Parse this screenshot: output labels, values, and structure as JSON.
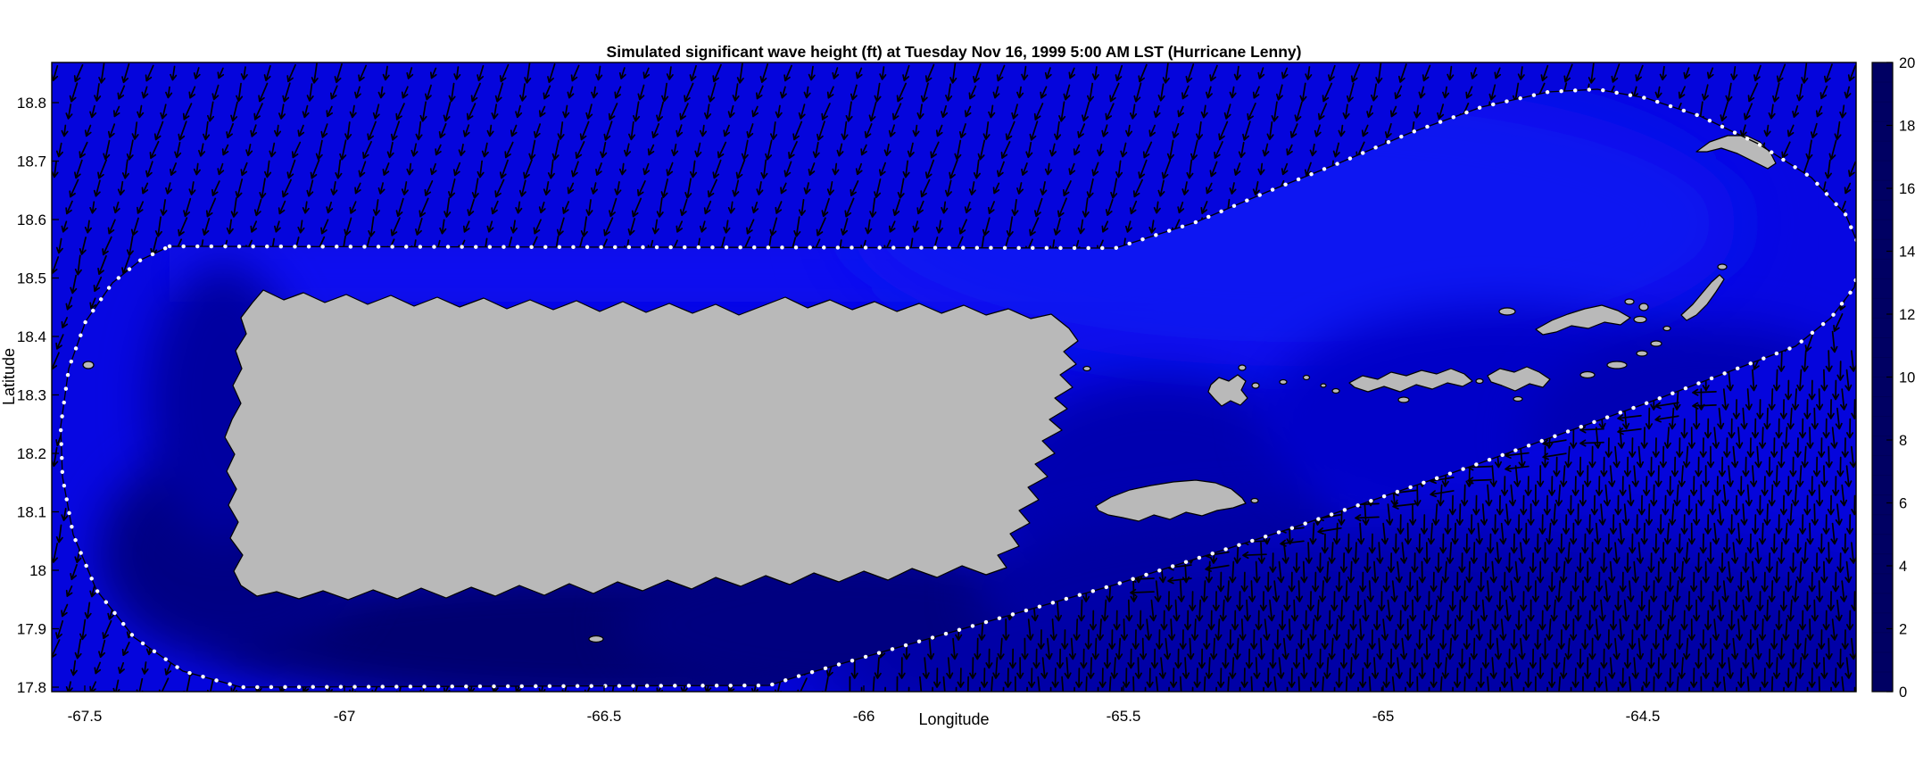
{
  "title": "Simulated significant wave height (ft) at Tuesday Nov 16, 1999  5:00 AM LST (Hurricane Lenny)",
  "axes": {
    "xlabel": "Longitude",
    "ylabel": "Latitude",
    "x_ticks": [
      "-67.5",
      "-67",
      "-66.5",
      "-66",
      "-65.5",
      "-65",
      "-64.5"
    ],
    "y_ticks": [
      "18.8",
      "18.7",
      "18.6",
      "18.5",
      "18.4",
      "18.3",
      "18.2",
      "18.1",
      "18",
      "17.9",
      "17.8"
    ]
  },
  "colorbar": {
    "min": 0,
    "max": 20,
    "ticks": [
      "0",
      "2",
      "4",
      "6",
      "8",
      "10",
      "12",
      "14",
      "16",
      "18",
      "20"
    ],
    "stops": [
      {
        "v": 0,
        "c": "#000063"
      },
      {
        "v": 1.5,
        "c": "#00007d"
      },
      {
        "v": 2.5,
        "c": "#0000a3"
      },
      {
        "v": 3.5,
        "c": "#0000d6"
      },
      {
        "v": 4.5,
        "c": "#0000fa"
      },
      {
        "v": 5.5,
        "c": "#0031ff"
      },
      {
        "v": 6.5,
        "c": "#0069ff"
      },
      {
        "v": 7.5,
        "c": "#00a4ff"
      },
      {
        "v": 8.5,
        "c": "#00e4f8"
      },
      {
        "v": 9.3,
        "c": "#2affc7"
      },
      {
        "v": 10,
        "c": "#7cfa81"
      },
      {
        "v": 10.8,
        "c": "#c2ff3c"
      },
      {
        "v": 11.5,
        "c": "#f2f406"
      },
      {
        "v": 12,
        "c": "#ffc400"
      },
      {
        "v": 13,
        "c": "#ff7e00"
      },
      {
        "v": 14,
        "c": "#ff2a00"
      },
      {
        "v": 15,
        "c": "#ff0040"
      },
      {
        "v": 16,
        "c": "#ff0095"
      },
      {
        "v": 17,
        "c": "#f900dc"
      },
      {
        "v": 18,
        "c": "#d900f2"
      },
      {
        "v": 19,
        "c": "#9c00c2"
      },
      {
        "v": 20,
        "c": "#6b0070"
      }
    ]
  },
  "colors": {
    "background": "#ffffff",
    "ocean_outside_domain": "#0505dc",
    "ocean_inside_domain": "#0707e2",
    "land_gray": "#b9b9b9",
    "coast_outline": "#000000",
    "domain_boundary_dots": "#ffffff",
    "vector_arrows": "#000000",
    "axes_frame": "#000000"
  },
  "chart_data": {
    "type": "heatmap",
    "title": "Simulated significant wave height (ft) at Tuesday Nov 16, 1999  5:00 AM LST (Hurricane Lenny)",
    "xlabel": "Longitude",
    "ylabel": "Latitude",
    "x_range": [
      -67.56,
      -64.09
    ],
    "x_ticks": [
      -67.5,
      -67,
      -66.5,
      -66,
      -65.5,
      -65,
      -64.5
    ],
    "y_range": [
      17.79,
      18.87
    ],
    "y_ticks": [
      18.8,
      18.7,
      18.6,
      18.5,
      18.4,
      18.3,
      18.2,
      18.1,
      18,
      17.9,
      17.8
    ],
    "colorbar": {
      "quantity": "significant wave height (ft)",
      "range": [
        0,
        20
      ],
      "ticks": [
        0,
        2,
        4,
        6,
        8,
        10,
        12,
        14,
        16,
        18,
        20
      ],
      "position": "right"
    },
    "field_estimates_ft": [
      {
        "region": "open ocean outside domain boundary (north and west)",
        "value": 4
      },
      {
        "region": "north of Puerto Rico inside domain",
        "value": 4
      },
      {
        "region": "northeast quadrant toward Anegada",
        "value": 4.5
      },
      {
        "region": "south coast of Puerto Rico (sheltered)",
        "value": 1.5
      },
      {
        "region": "west coast of Puerto Rico",
        "value": 2.5
      },
      {
        "region": "passage east of Puerto Rico near Vieques/Culebra",
        "value": 3
      },
      {
        "region": "around Virgin Islands",
        "value": 3
      },
      {
        "region": "southeast corner outside boundary",
        "value": 3
      }
    ],
    "overlays": [
      "white dotted rounded model-domain boundary outline",
      "black direction vectors outside the domain pointing roughly S-SSW (westward band along the SE boundary)",
      "gray land masses: Puerto Rico, Desecheo, Caja de Muertos, Vieques, Culebra, St. Thomas, St. John, Tortola, Jost Van Dyke, Virgin Gorda, Anegada and nearby cays"
    ],
    "grid": false,
    "legend_position": "right colorbar"
  }
}
